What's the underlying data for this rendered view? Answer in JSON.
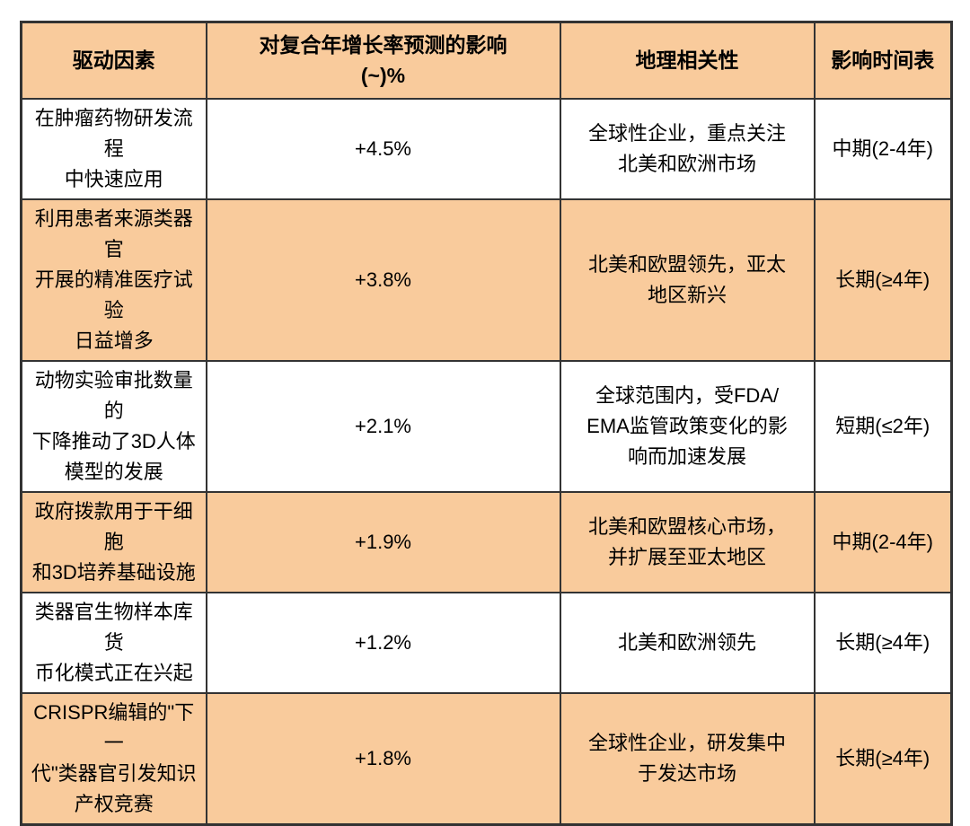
{
  "chart_data": {
    "type": "table",
    "columns": [
      "驱动因素",
      "对复合年增长率预测的影响\n(~)%",
      "地理相关性",
      "影响时间表"
    ],
    "rows": [
      {
        "driver": "在肿瘤药物研发流程\n中快速应用",
        "impact": "+4.5%",
        "geography": "全球性企业，重点关注\n北美和欧洲市场",
        "timeline": "中期(2-4年)",
        "highlighted": false
      },
      {
        "driver": "利用患者来源类器官\n开展的精准医疗试验\n日益增多",
        "impact": "+3.8%",
        "geography": "北美和欧盟领先，亚太\n地区新兴",
        "timeline": "长期(≥4年)",
        "highlighted": true
      },
      {
        "driver": "动物实验审批数量的\n下降推动了3D人体\n模型的发展",
        "impact": "+2.1%",
        "geography": "全球范围内，受FDA/\nEMA监管政策变化的影\n响而加速发展",
        "timeline": "短期(≤2年)",
        "highlighted": false
      },
      {
        "driver": "政府拨款用于干细胞\n和3D培养基础设施",
        "impact": "+1.9%",
        "geography": "北美和欧盟核心市场，\n并扩展至亚太地区",
        "timeline": "中期(2-4年)",
        "highlighted": true
      },
      {
        "driver": "类器官生物样本库货\n币化模式正在兴起",
        "impact": "+1.2%",
        "geography": "北美和欧洲领先",
        "timeline": "长期(≥4年)",
        "highlighted": false
      },
      {
        "driver": "CRISPR编辑的\"下一\n代\"类器官引发知识\n产权竞赛",
        "impact": "+1.8%",
        "geography": "全球性企业，研发集中\n于发达市场",
        "timeline": "长期(≥4年)",
        "highlighted": true
      }
    ],
    "impact_values_pct": [
      4.5,
      3.8,
      2.1,
      1.9,
      1.2,
      1.8
    ]
  },
  "colors": {
    "header_bg": "#F9CB9C",
    "row_highlight_bg": "#F9CB9C",
    "row_bg": "#FFFFFF",
    "border": "#333333",
    "text": "#000000",
    "page_bg": "#FFFFFF"
  }
}
